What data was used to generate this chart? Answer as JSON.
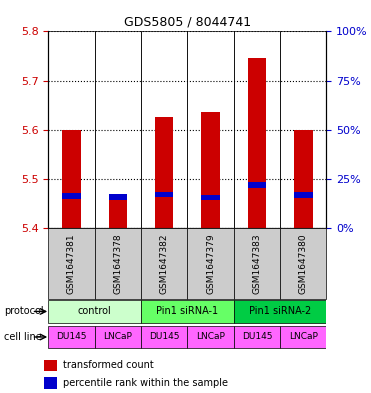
{
  "title": "GDS5805 / 8044741",
  "samples": [
    "GSM1647381",
    "GSM1647378",
    "GSM1647382",
    "GSM1647379",
    "GSM1647383",
    "GSM1647380"
  ],
  "red_values": [
    5.6,
    5.47,
    5.625,
    5.635,
    5.745,
    5.6
  ],
  "blue_values": [
    5.465,
    5.463,
    5.468,
    5.462,
    5.487,
    5.467
  ],
  "ylim": [
    5.4,
    5.8
  ],
  "yticks_left": [
    5.4,
    5.5,
    5.6,
    5.7,
    5.8
  ],
  "yticks_right": [
    0,
    25,
    50,
    75,
    100
  ],
  "ylim_right": [
    0,
    100
  ],
  "bar_color": "#cc0000",
  "blue_color": "#0000cc",
  "bar_width": 0.4,
  "protocols": [
    {
      "label": "control",
      "columns": [
        0,
        1
      ],
      "color": "#ccffcc"
    },
    {
      "label": "Pin1 siRNA-1",
      "columns": [
        2,
        3
      ],
      "color": "#66ff66"
    },
    {
      "label": "Pin1 siRNA-2",
      "columns": [
        4,
        5
      ],
      "color": "#00cc44"
    }
  ],
  "cell_lines": [
    {
      "label": "DU145",
      "column": 0,
      "color": "#ff66ff"
    },
    {
      "label": "LNCaP",
      "column": 1,
      "color": "#ff66ff"
    },
    {
      "label": "DU145",
      "column": 2,
      "color": "#ff66ff"
    },
    {
      "label": "LNCaP",
      "column": 3,
      "color": "#ff66ff"
    },
    {
      "label": "DU145",
      "column": 4,
      "color": "#ff66ff"
    },
    {
      "label": "LNCaP",
      "column": 5,
      "color": "#ff66ff"
    }
  ],
  "left_axis_color": "#cc0000",
  "right_axis_color": "#0000cc",
  "bg_color": "#ffffff",
  "grid_color": "#000000",
  "sample_bg": "#cccccc"
}
